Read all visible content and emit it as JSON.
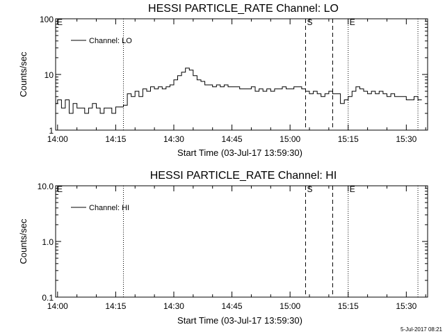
{
  "footer_timestamp": "5-Jul-2017 08:21",
  "chart_data": [
    {
      "type": "line",
      "title": "HESSI PARTICLE_RATE Channel: LO",
      "xlabel": "Start Time (03-Jul-17 13:59:30)",
      "ylabel": "Counts/sec",
      "yscale": "log",
      "ylim": [
        1,
        100
      ],
      "ytick_labels": [
        "1",
        "10",
        "100"
      ],
      "xlim": [
        "13:59:30",
        "15:35:30"
      ],
      "xtick_labels": [
        "14:00",
        "14:15",
        "14:30",
        "14:45",
        "15:00",
        "15:15",
        "15:30"
      ],
      "legend": "top-left",
      "series": [
        {
          "name": "Channel: LO",
          "x": [
            "13:59:30",
            "14:00",
            "14:01",
            "14:02",
            "14:03",
            "14:04",
            "14:05",
            "14:06",
            "14:07",
            "14:08",
            "14:09",
            "14:10",
            "14:11",
            "14:12",
            "14:13",
            "14:14",
            "14:15",
            "14:16",
            "14:17",
            "14:18",
            "14:19",
            "14:20",
            "14:21",
            "14:22",
            "14:23",
            "14:24",
            "14:25",
            "14:26",
            "14:27",
            "14:28",
            "14:29",
            "14:30",
            "14:31",
            "14:32",
            "14:33",
            "14:34",
            "14:35",
            "14:36",
            "14:37",
            "14:38",
            "14:39",
            "14:40",
            "14:41",
            "14:42",
            "14:43",
            "14:44",
            "14:45",
            "14:46",
            "14:47",
            "14:48",
            "14:49",
            "14:50",
            "14:51",
            "14:52",
            "14:53",
            "14:54",
            "14:55",
            "14:56",
            "14:57",
            "14:58",
            "14:59",
            "15:00",
            "15:01",
            "15:02",
            "15:03",
            "15:04",
            "15:05",
            "15:06",
            "15:07",
            "15:08",
            "15:09",
            "15:10",
            "15:11",
            "15:12",
            "15:13",
            "15:14",
            "15:15",
            "15:16",
            "15:17",
            "15:18",
            "15:19",
            "15:20",
            "15:21",
            "15:22",
            "15:23",
            "15:24",
            "15:25",
            "15:26",
            "15:27",
            "15:28",
            "15:29",
            "15:30",
            "15:31",
            "15:32",
            "15:33"
          ],
          "values": [
            3,
            3.5,
            2.5,
            3.5,
            2,
            3,
            2.5,
            2.5,
            2,
            2.5,
            3,
            2.5,
            2,
            2.5,
            2.5,
            2,
            2.6,
            2.6,
            2.8,
            4.5,
            4,
            5,
            4,
            5.5,
            5,
            6,
            5.5,
            6,
            5.5,
            6,
            6.5,
            8,
            9.5,
            11,
            13,
            12,
            9.5,
            8,
            7.5,
            6.5,
            6.5,
            6,
            6.5,
            6,
            6.5,
            6,
            6,
            6,
            5.5,
            5.5,
            5.5,
            6,
            5,
            5.5,
            5,
            5.5,
            5,
            5.5,
            5.5,
            6,
            5.5,
            5.5,
            6,
            6,
            5.5,
            5,
            4.5,
            5,
            4.5,
            4,
            4.5,
            5,
            4.5,
            4.5,
            3,
            3.5,
            4,
            5,
            6,
            5.5,
            5,
            4.5,
            5,
            4.5,
            5,
            4.5,
            4,
            4.5,
            4,
            4,
            4,
            3.5,
            3.5,
            4,
            3.5
          ]
        }
      ],
      "markers": [
        {
          "label": "E",
          "time": "13:59:30",
          "style": "dotted"
        },
        {
          "label": "",
          "time": "14:17",
          "style": "dotted"
        },
        {
          "label": "S",
          "time": "15:04",
          "style": "dashed"
        },
        {
          "label": "",
          "time": "15:11",
          "style": "dashed"
        },
        {
          "label": "E",
          "time": "15:15",
          "style": "dotted"
        },
        {
          "label": "",
          "time": "15:33",
          "style": "dotted"
        }
      ]
    },
    {
      "type": "line",
      "title": "HESSI PARTICLE_RATE Channel: HI",
      "xlabel": "Start Time (03-Jul-17 13:59:30)",
      "ylabel": "Counts/sec",
      "yscale": "log",
      "ylim": [
        0.1,
        10.0
      ],
      "ytick_labels": [
        "0.1",
        "1.0",
        "10.0"
      ],
      "xlim": [
        "13:59:30",
        "15:35:30"
      ],
      "xtick_labels": [
        "14:00",
        "14:15",
        "14:30",
        "14:45",
        "15:00",
        "15:15",
        "15:30"
      ],
      "legend": "top-left",
      "series": [
        {
          "name": "Channel: HI",
          "x": [],
          "values": []
        }
      ],
      "markers": [
        {
          "label": "E",
          "time": "13:59:30",
          "style": "dotted"
        },
        {
          "label": "",
          "time": "14:17",
          "style": "dotted"
        },
        {
          "label": "S",
          "time": "15:04",
          "style": "dashed"
        },
        {
          "label": "",
          "time": "15:11",
          "style": "dashed"
        },
        {
          "label": "E",
          "time": "15:15",
          "style": "dotted"
        },
        {
          "label": "",
          "time": "15:33",
          "style": "dotted"
        }
      ]
    }
  ]
}
